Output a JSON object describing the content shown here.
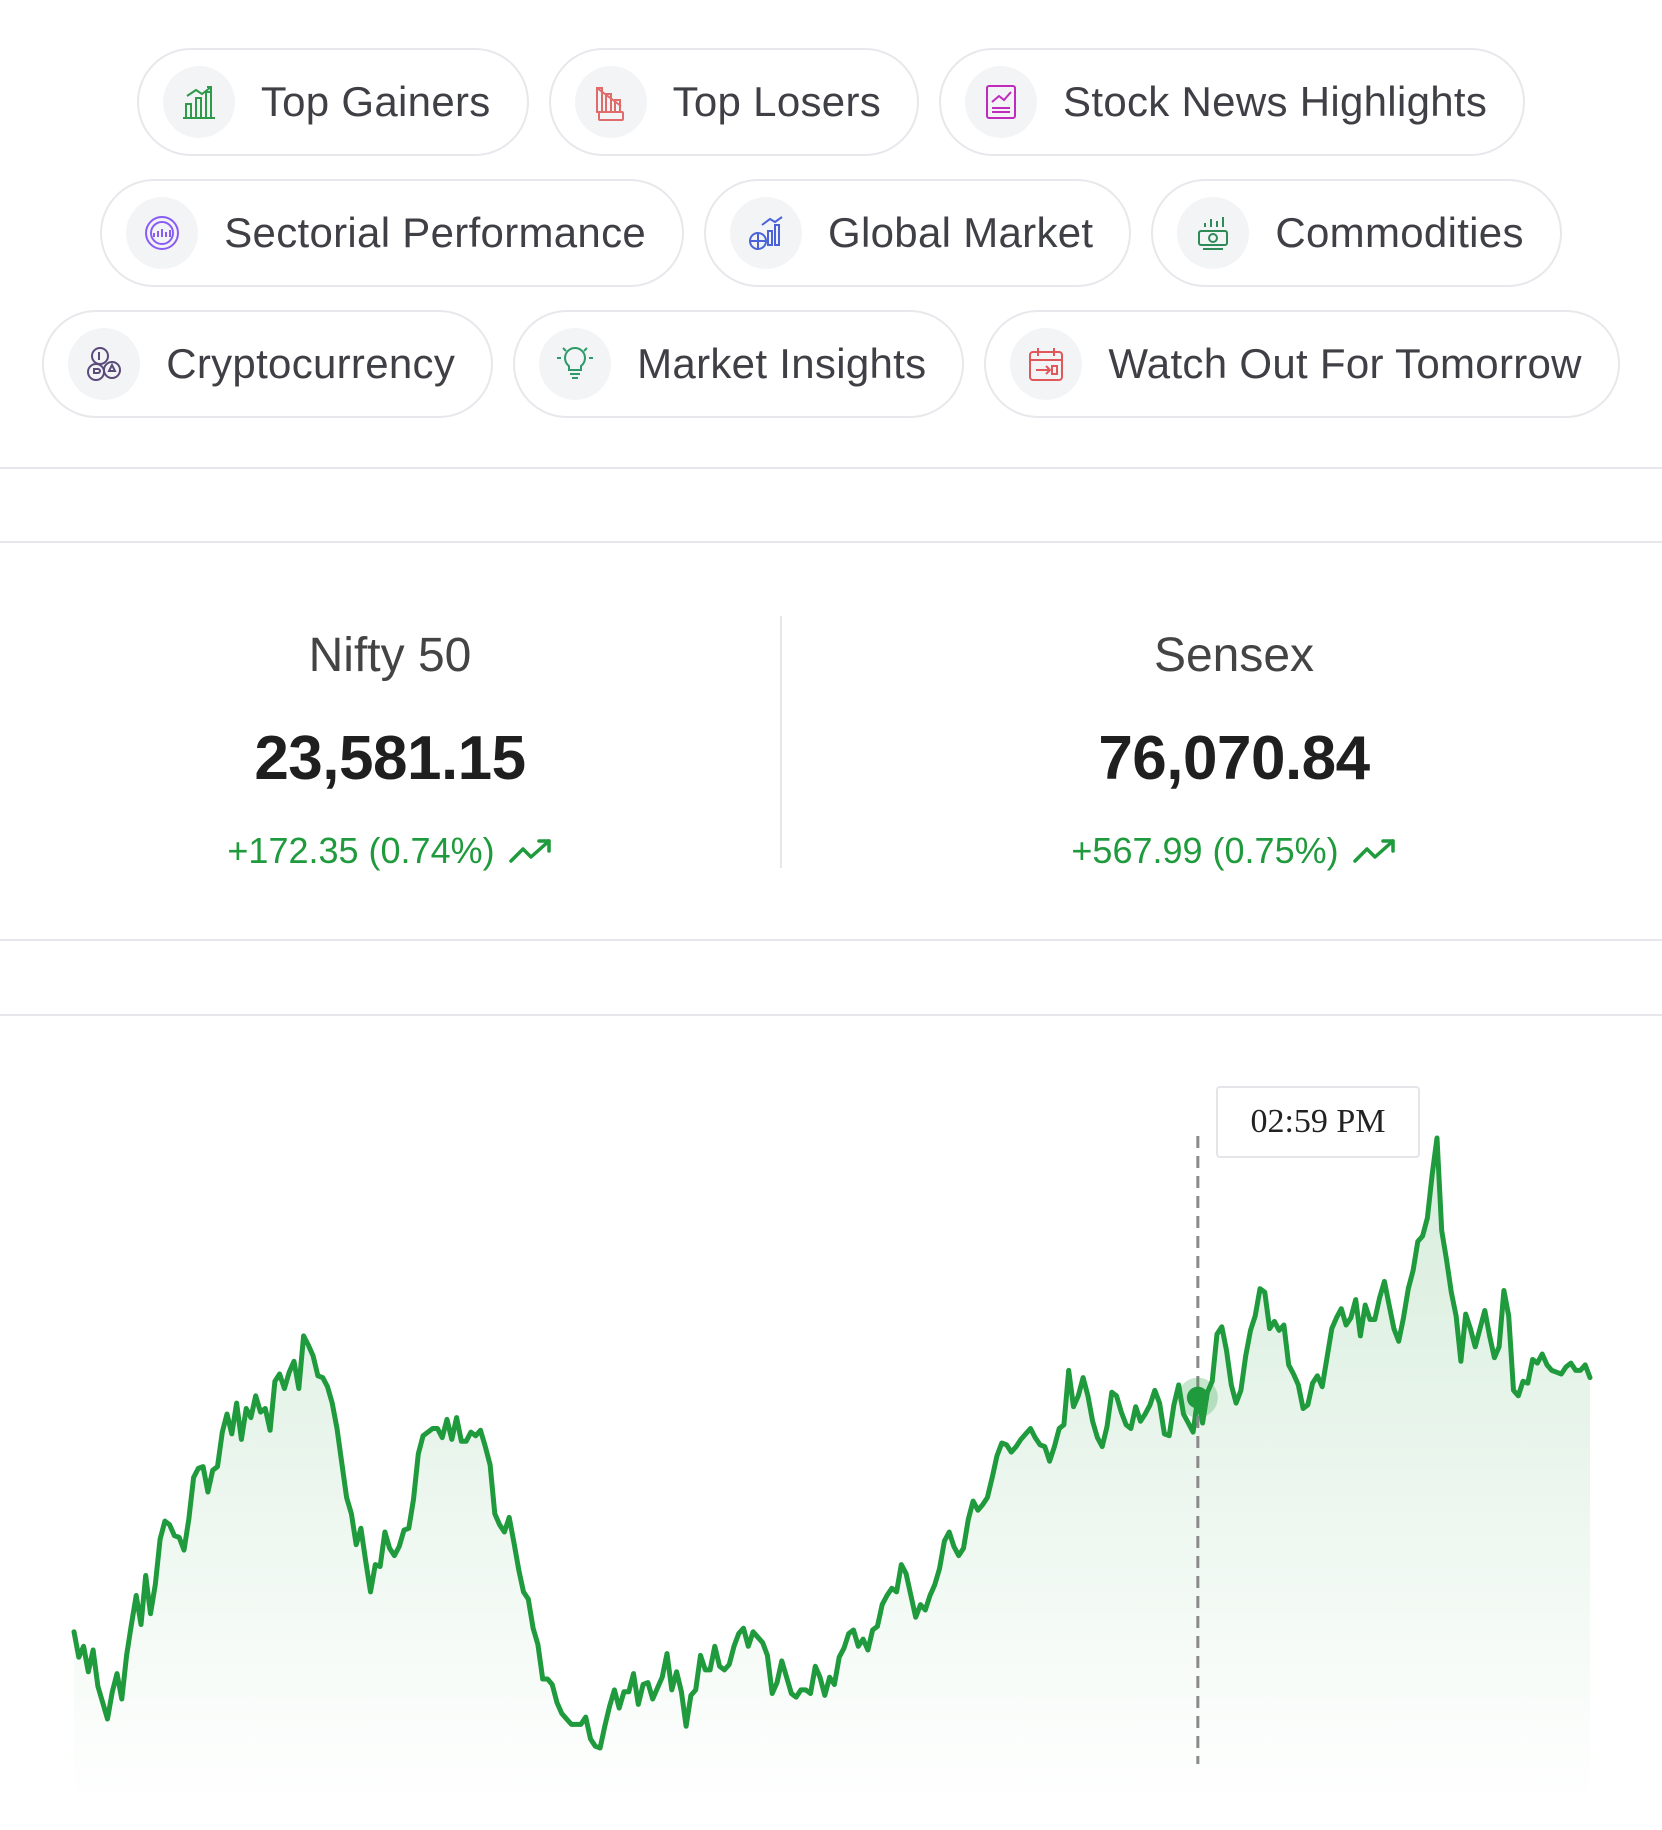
{
  "nav_chips": [
    {
      "label": "Top Gainers",
      "icon": "top-gainers-icon"
    },
    {
      "label": "Top Losers",
      "icon": "top-losers-icon"
    },
    {
      "label": "Stock News Highlights",
      "icon": "stock-news-icon"
    },
    {
      "label": "Sectorial Performance",
      "icon": "sectorial-performance-icon"
    },
    {
      "label": "Global Market",
      "icon": "global-market-icon"
    },
    {
      "label": "Commodities",
      "icon": "commodities-icon"
    },
    {
      "label": "Cryptocurrency",
      "icon": "cryptocurrency-icon"
    },
    {
      "label": "Market Insights",
      "icon": "market-insights-icon"
    },
    {
      "label": "Watch Out For Tomorrow",
      "icon": "watch-out-tomorrow-icon"
    }
  ],
  "indices": [
    {
      "name": "Nifty 50",
      "value": "23,581.15",
      "change": "+172.35 (0.74%)",
      "trend": "up"
    },
    {
      "name": "Sensex",
      "value": "76,070.84",
      "change": "+567.99 (0.75%)",
      "trend": "up"
    }
  ],
  "chart": {
    "tooltip_time": "02:59 PM",
    "line_color": "#1f9a3c",
    "highlight_index": 235
  },
  "chart_data": {
    "type": "area",
    "series": [
      {
        "values": [
          23258,
          23244,
          23250,
          23236,
          23248,
          23228,
          23219,
          23210,
          23225,
          23235,
          23221,
          23245,
          23262,
          23278,
          23262,
          23289,
          23268,
          23284,
          23309,
          23319,
          23317,
          23311,
          23310,
          23303,
          23320,
          23343,
          23348,
          23349,
          23335,
          23347,
          23349,
          23368,
          23378,
          23367,
          23384,
          23364,
          23381,
          23376,
          23388,
          23379,
          23381,
          23369,
          23396,
          23400,
          23392,
          23401,
          23407,
          23392,
          23421,
          23416,
          23410,
          23399,
          23398,
          23393,
          23384,
          23370,
          23351,
          23332,
          23323,
          23306,
          23315,
          23297,
          23280,
          23295,
          23294,
          23313,
          23304,
          23300,
          23305,
          23314,
          23315,
          23331,
          23356,
          23366,
          23368,
          23370,
          23370,
          23365,
          23375,
          23364,
          23376,
          23363,
          23363,
          23368,
          23366,
          23369,
          23360,
          23350,
          23323,
          23317,
          23313,
          23321,
          23307,
          23292,
          23280,
          23276,
          23260,
          23251,
          23232,
          23232,
          23229,
          23219,
          23213,
          23210,
          23207,
          23207,
          23207,
          23211,
          23199,
          23195,
          23194,
          23206,
          23217,
          23226,
          23216,
          23225,
          23225,
          23235,
          23218,
          23229,
          23230,
          23221,
          23227,
          23233,
          23246,
          23226,
          23236,
          23225,
          23206,
          23223,
          23226,
          23245,
          23237,
          23237,
          23250,
          23239,
          23237,
          23240,
          23250,
          23257,
          23260,
          23250,
          23258,
          23255,
          23252,
          23245,
          23224,
          23230,
          23242,
          23233,
          23224,
          23222,
          23226,
          23226,
          23224,
          23239,
          23233,
          23223,
          23233,
          23229,
          23244,
          23249,
          23257,
          23259,
          23250,
          23254,
          23248,
          23259,
          23261,
          23273,
          23278,
          23282,
          23280,
          23295,
          23290,
          23278,
          23266,
          23273,
          23270,
          23278,
          23284,
          23293,
          23308,
          23313,
          23305,
          23300,
          23304,
          23320,
          23330,
          23325,
          23328,
          23332,
          23343,
          23355,
          23362,
          23361,
          23357,
          23360,
          23364,
          23367,
          23370,
          23365,
          23361,
          23360,
          23352,
          23360,
          23370,
          23372,
          23402,
          23382,
          23388,
          23398,
          23388,
          23374,
          23365,
          23360,
          23371,
          23390,
          23388,
          23379,
          23372,
          23370,
          23382,
          23374,
          23378,
          23383,
          23391,
          23384,
          23367,
          23366,
          23383,
          23394,
          23378,
          23373,
          23368,
          23387,
          23373,
          23390,
          23396,
          23422,
          23426,
          23413,
          23394,
          23384,
          23391,
          23410,
          23424,
          23432,
          23447,
          23445,
          23425,
          23429,
          23424,
          23427,
          23405,
          23400,
          23394,
          23381,
          23383,
          23395,
          23399,
          23393,
          23409,
          23425,
          23431,
          23436,
          23427,
          23431,
          23441,
          23421,
          23438,
          23430,
          23430,
          23442,
          23451,
          23438,
          23425,
          23418,
          23431,
          23447,
          23457,
          23473,
          23476,
          23486,
          23510,
          23530,
          23479,
          23463,
          23445,
          23432,
          23407,
          23433,
          23425,
          23415,
          23425,
          23435,
          23421,
          23409,
          23415,
          23446,
          23432,
          23391,
          23388,
          23396,
          23395,
          23408,
          23406,
          23411,
          23405,
          23402,
          23401,
          23400,
          23404,
          23406,
          23402,
          23402,
          23405,
          23398
        ]
      }
    ]
  }
}
